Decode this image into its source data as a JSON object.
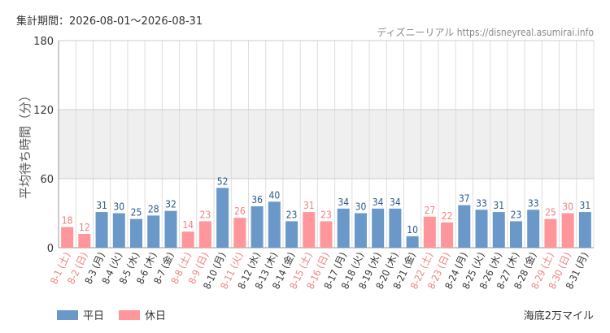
{
  "period_label": "集計期間：2026-08-01～2026-08-31",
  "source_label": "ディズニーリアル https://disneyreal.asumirai.info",
  "caption": "海底2万マイル",
  "colors": {
    "weekday_bar": "#6a98c9",
    "holiday_bar": "#ff969b",
    "weekday_label": "#2b5a8c",
    "holiday_label": "#f08080",
    "weekday_tick": "#333333",
    "holiday_tick": "#f08080",
    "band": "#efefef",
    "grid": "#dddddd"
  },
  "chart_data": {
    "type": "bar",
    "ylabel": "平均待ち時間（分）",
    "ylim": [
      0,
      180
    ],
    "yticks": [
      0,
      60,
      120,
      180
    ],
    "shaded_band": [
      60,
      120
    ],
    "legend_placement": "bottom-left",
    "series": [
      {
        "name": "平日",
        "color": "#6a98c9"
      },
      {
        "name": "休日",
        "color": "#ff969b"
      }
    ],
    "categories": [
      "8-1 (土)",
      "8-2 (日)",
      "8-3 (月)",
      "8-4 (火)",
      "8-5 (水)",
      "8-6 (木)",
      "8-7 (金)",
      "8-8 (土)",
      "8-9 (日)",
      "8-10 (月)",
      "8-11 (火)",
      "8-12 (水)",
      "8-13 (木)",
      "8-14 (金)",
      "8-15 (土)",
      "8-16 (日)",
      "8-17 (月)",
      "8-18 (火)",
      "8-19 (水)",
      "8-20 (木)",
      "8-21 (金)",
      "8-22 (土)",
      "8-23 (日)",
      "8-24 (月)",
      "8-25 (火)",
      "8-26 (水)",
      "8-27 (木)",
      "8-28 (金)",
      "8-29 (土)",
      "8-30 (日)",
      "8-31 (月)"
    ],
    "values": [
      18,
      12,
      31,
      30,
      25,
      28,
      32,
      14,
      23,
      52,
      26,
      36,
      40,
      23,
      31,
      23,
      34,
      30,
      34,
      34,
      10,
      27,
      22,
      37,
      33,
      31,
      23,
      33,
      25,
      30,
      31
    ],
    "day_type": [
      "休日",
      "休日",
      "平日",
      "平日",
      "平日",
      "平日",
      "平日",
      "休日",
      "休日",
      "平日",
      "休日",
      "平日",
      "平日",
      "平日",
      "休日",
      "休日",
      "平日",
      "平日",
      "平日",
      "平日",
      "平日",
      "休日",
      "休日",
      "平日",
      "平日",
      "平日",
      "平日",
      "平日",
      "休日",
      "休日",
      "平日"
    ]
  }
}
